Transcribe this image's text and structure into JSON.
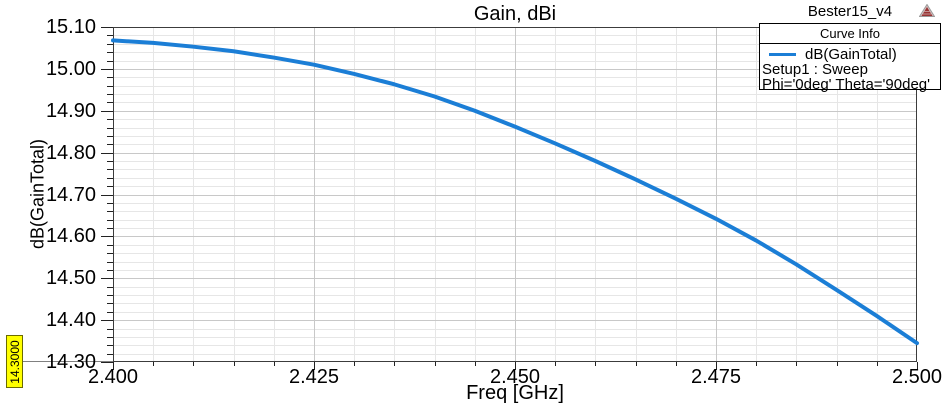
{
  "header": {
    "project_name": "Bester15_v4"
  },
  "icons": {
    "logo": "ansys-triangle-icon"
  },
  "legend": {
    "header": "Curve Info",
    "entries": [
      {
        "label": "dB(GainTotal)",
        "color": "#1b7ed6"
      }
    ],
    "info_lines": [
      "Setup1 : Sweep",
      "Phi='0deg' Theta='90deg'"
    ]
  },
  "marker": {
    "label": "14.3000",
    "value": 14.3,
    "background": "#ffff00"
  },
  "chart_data": {
    "type": "line",
    "title": "Gain, dBi",
    "xlabel": "Freq [GHz]",
    "ylabel": "dB(GainTotal)",
    "xlim": [
      2.4,
      2.5
    ],
    "ylim": [
      14.3,
      15.1
    ],
    "x_major_ticks": [
      2.4,
      2.425,
      2.45,
      2.475,
      2.5
    ],
    "x_tick_labels": [
      "2.400",
      "2.425",
      "2.450",
      "2.475",
      "2.500"
    ],
    "x_minor_step": 0.005,
    "y_major_ticks": [
      15.1,
      15.0,
      14.9,
      14.8,
      14.7,
      14.6,
      14.5,
      14.4,
      14.3
    ],
    "y_tick_labels": [
      "15.10",
      "15.00",
      "14.90",
      "14.80",
      "14.70",
      "14.60",
      "14.50",
      "14.40",
      "14.30"
    ],
    "y_minor_step": 0.02,
    "grid": "major+minor",
    "legend_position": "top-right",
    "series": [
      {
        "name": "dB(GainTotal)",
        "color": "#1b7ed6",
        "x": [
          2.4,
          2.405,
          2.41,
          2.415,
          2.42,
          2.425,
          2.43,
          2.435,
          2.44,
          2.445,
          2.45,
          2.455,
          2.46,
          2.465,
          2.47,
          2.475,
          2.48,
          2.485,
          2.49,
          2.495,
          2.5
        ],
        "y": [
          15.068,
          15.062,
          15.053,
          15.042,
          15.027,
          15.01,
          14.988,
          14.963,
          14.934,
          14.9,
          14.862,
          14.822,
          14.78,
          14.736,
          14.69,
          14.642,
          14.59,
          14.533,
          14.472,
          14.41,
          14.345
        ]
      }
    ]
  }
}
